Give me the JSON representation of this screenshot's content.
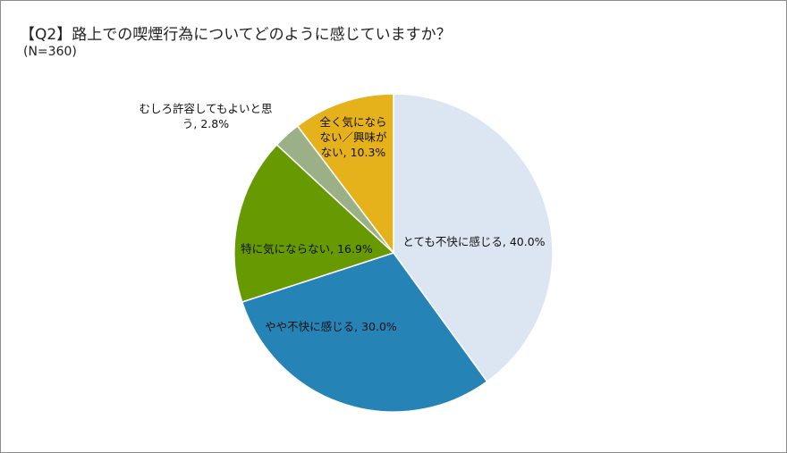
{
  "chart_data": {
    "type": "pie",
    "title": "【Q2】路上での喫煙行為についてどのように感じていますか？",
    "subtitle": "(N=360)",
    "start": "top",
    "direction": "clockwise",
    "slices": [
      {
        "label": "とても不快に感じる",
        "value": 40.0,
        "display": "40.0%",
        "color": "#dce6f2"
      },
      {
        "label": "やや不快に感じる",
        "value": 30.0,
        "display": "30.0%",
        "color": "#2683b6"
      },
      {
        "label": "特に気にならない",
        "value": 16.9,
        "display": "16.9%",
        "color": "#679900"
      },
      {
        "label": "むしろ許容してもよいと思う",
        "value": 2.8,
        "display": "2.8%",
        "color": "#9cb088"
      },
      {
        "label": "全く気にならない／興味がない",
        "value": 10.3,
        "display": "10.3%",
        "color": "#e6b21c"
      }
    ]
  }
}
